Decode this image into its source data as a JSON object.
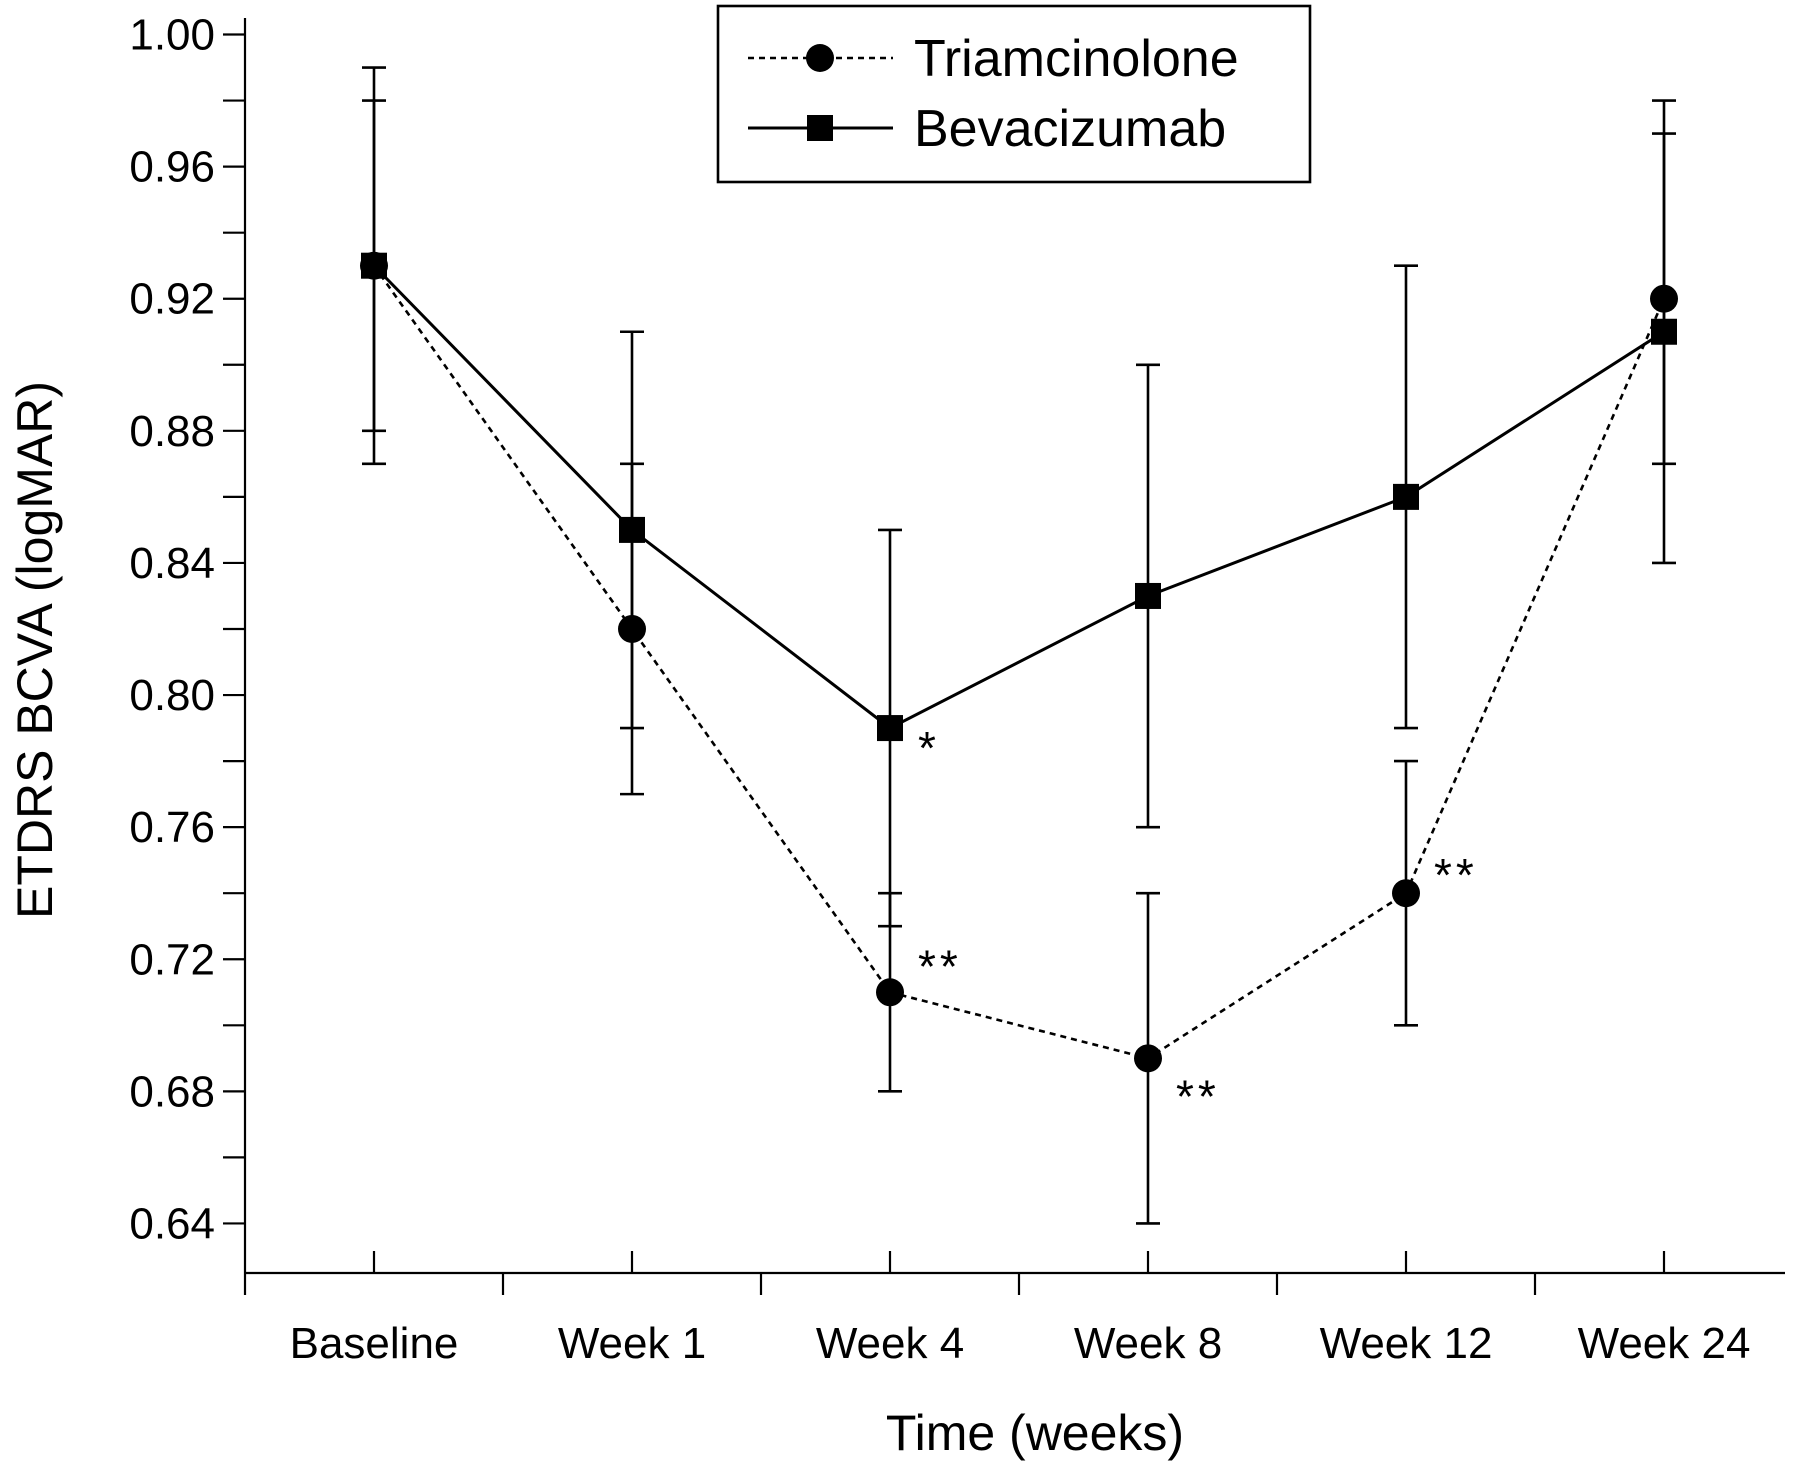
{
  "chart_data": {
    "type": "line",
    "xlabel": "Time (weeks)",
    "ylabel": "ETDRS BCVA (logMAR)",
    "categories": [
      "Baseline",
      "Week 1",
      "Week 4",
      "Week 8",
      "Week 12",
      "Week 24"
    ],
    "ylim": [
      0.625,
      1.005
    ],
    "y_ticks": [
      "0.64",
      "0.68",
      "0.72",
      "0.76",
      "0.80",
      "0.84",
      "0.88",
      "0.92",
      "0.96",
      "1.00"
    ],
    "grid": false,
    "legend_position": "top-center",
    "series": [
      {
        "name": "Triamcinolone",
        "marker": "circle",
        "line_style": "dotted",
        "color": "#000000",
        "values": [
          0.93,
          0.82,
          0.71,
          0.69,
          0.74,
          0.92
        ],
        "error_low": [
          0.87,
          0.77,
          0.68,
          0.64,
          0.7,
          0.87
        ],
        "error_high": [
          0.99,
          0.87,
          0.74,
          0.74,
          0.78,
          0.97
        ]
      },
      {
        "name": "Bevacizumab",
        "marker": "square",
        "line_style": "solid",
        "color": "#000000",
        "values": [
          0.93,
          0.85,
          0.79,
          0.83,
          0.86,
          0.91
        ],
        "error_low": [
          0.88,
          0.79,
          0.73,
          0.76,
          0.79,
          0.84
        ],
        "error_high": [
          0.98,
          0.91,
          0.85,
          0.9,
          0.93,
          0.98
        ]
      }
    ],
    "annotations": [
      {
        "text": "*",
        "category": "Week 4",
        "series": "Bevacizumab"
      },
      {
        "text": "**",
        "category": "Week 4",
        "series": "Triamcinolone"
      },
      {
        "text": "**",
        "category": "Week 8",
        "series": "Triamcinolone"
      },
      {
        "text": "**",
        "category": "Week 12",
        "series": "Triamcinolone"
      }
    ]
  }
}
